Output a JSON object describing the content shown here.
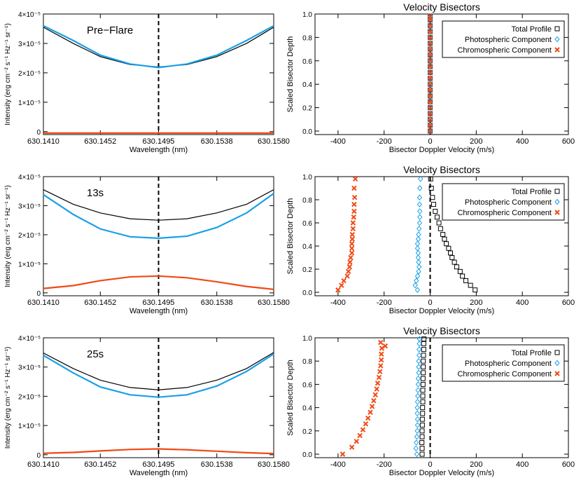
{
  "colors": {
    "total": "#000000",
    "photospheric": "#1aa0e6",
    "chromospheric": "#f04a14",
    "line_center": "#000000"
  },
  "chart_data": [
    {
      "type": "line",
      "xlabel": "Wavelength (nm)",
      "ylabel": "Intensity (erg cm⁻² s⁻¹ Hz⁻¹ sr⁻¹)",
      "xlim": [
        630.141,
        630.158
      ],
      "ylim": [
        -0.1,
        4.0
      ],
      "y_scale_label": "×10⁻⁵",
      "xticks": [
        "630.1410",
        "630.1452",
        "630.1495",
        "630.1538",
        "630.1580"
      ],
      "xtick_values": [
        630.141,
        630.1452,
        630.1495,
        630.1538,
        630.158
      ],
      "yticks": [
        "0",
        "1×10⁻⁵",
        "2×10⁻⁵",
        "3×10⁻⁵",
        "4×10⁻⁵"
      ],
      "ytick_values": [
        0,
        1,
        2,
        3,
        4
      ],
      "annotation": "Pre−Flare",
      "vline_x": 630.1495,
      "series": [
        {
          "key": "total",
          "x": [
            630.141,
            630.1432,
            630.1452,
            630.1474,
            630.1495,
            630.1516,
            630.1538,
            630.156,
            630.158
          ],
          "values": [
            3.55,
            3.0,
            2.55,
            2.28,
            2.2,
            2.28,
            2.55,
            3.0,
            3.55
          ]
        },
        {
          "key": "photospheric",
          "x": [
            630.141,
            630.1432,
            630.1452,
            630.1474,
            630.1495,
            630.1516,
            630.1538,
            630.156,
            630.158
          ],
          "values": [
            3.6,
            3.1,
            2.6,
            2.3,
            2.18,
            2.3,
            2.6,
            3.1,
            3.6
          ]
        },
        {
          "key": "chromospheric",
          "x": [
            630.141,
            630.158
          ],
          "values": [
            -0.05,
            -0.05
          ]
        }
      ]
    },
    {
      "type": "scatter",
      "title": "Velocity Bisectors",
      "xlabel": "Bisector Doppler Velocity (m/s)",
      "ylabel": "Scaled Bisector Depth",
      "xlim": [
        -500,
        600
      ],
      "ylim": [
        -0.03,
        1.0
      ],
      "xticks": [
        -400,
        -200,
        0,
        200,
        400,
        600
      ],
      "yticks": [
        0.0,
        0.2,
        0.4,
        0.6,
        0.8,
        1.0
      ],
      "legend": [
        "Total Profile",
        "Photospheric Component",
        "Chromospheric Component"
      ],
      "legend_position": "top-right",
      "vline_x": 0,
      "series": [
        {
          "name": "Total Profile",
          "key": "total",
          "x": [
            0,
            0,
            0,
            0,
            0,
            0,
            0,
            0,
            0,
            0,
            0,
            0,
            0,
            0,
            0,
            0,
            0,
            0,
            0,
            0,
            0
          ],
          "y": [
            0.0,
            0.05,
            0.1,
            0.15,
            0.2,
            0.25,
            0.3,
            0.35,
            0.4,
            0.45,
            0.5,
            0.55,
            0.6,
            0.65,
            0.7,
            0.75,
            0.8,
            0.85,
            0.9,
            0.95,
            0.98
          ]
        },
        {
          "name": "Photospheric Component",
          "key": "photospheric",
          "x": [
            0,
            0,
            0,
            0,
            0,
            0,
            0,
            0,
            0,
            0,
            0,
            0,
            0,
            0,
            0,
            0,
            0,
            0,
            0,
            0,
            0
          ],
          "y": [
            0.0,
            0.05,
            0.1,
            0.15,
            0.2,
            0.25,
            0.3,
            0.35,
            0.4,
            0.45,
            0.5,
            0.55,
            0.6,
            0.65,
            0.7,
            0.75,
            0.8,
            0.85,
            0.9,
            0.95,
            0.98
          ]
        },
        {
          "name": "Chromospheric Component",
          "key": "chromospheric",
          "x": [
            0,
            0,
            0,
            0,
            0,
            0,
            0,
            0,
            0,
            0,
            0,
            0,
            0,
            0,
            0,
            0,
            0,
            0,
            0,
            0,
            0
          ],
          "y": [
            0.0,
            0.05,
            0.1,
            0.15,
            0.2,
            0.25,
            0.3,
            0.35,
            0.4,
            0.45,
            0.5,
            0.55,
            0.6,
            0.65,
            0.7,
            0.75,
            0.8,
            0.85,
            0.9,
            0.95,
            0.98
          ]
        }
      ]
    },
    {
      "type": "line",
      "xlabel": "Wavelength (nm)",
      "ylabel": "Intensity (erg cm⁻² s⁻¹ Hz⁻¹ sr⁻¹)",
      "xlim": [
        630.141,
        630.158
      ],
      "ylim": [
        -0.1,
        4.0
      ],
      "y_scale_label": "×10⁻⁵",
      "xticks": [
        "630.1410",
        "630.1452",
        "630.1495",
        "630.1538",
        "630.1580"
      ],
      "xtick_values": [
        630.141,
        630.1452,
        630.1495,
        630.1538,
        630.158
      ],
      "yticks": [
        "0",
        "1×10⁻⁵",
        "2×10⁻⁵",
        "3×10⁻⁵",
        "4×10⁻⁵"
      ],
      "ytick_values": [
        0,
        1,
        2,
        3,
        4
      ],
      "annotation": "13s",
      "vline_x": 630.1495,
      "series": [
        {
          "key": "total",
          "x": [
            630.141,
            630.1432,
            630.1452,
            630.1474,
            630.1495,
            630.1516,
            630.1538,
            630.156,
            630.158
          ],
          "values": [
            3.55,
            3.05,
            2.75,
            2.55,
            2.5,
            2.55,
            2.75,
            3.05,
            3.55
          ]
        },
        {
          "key": "photospheric",
          "x": [
            630.141,
            630.1432,
            630.1452,
            630.1474,
            630.1495,
            630.1516,
            630.1538,
            630.156,
            630.158
          ],
          "values": [
            3.38,
            2.7,
            2.2,
            1.93,
            1.88,
            1.95,
            2.25,
            2.75,
            3.42
          ]
        },
        {
          "key": "chromospheric",
          "x": [
            630.141,
            630.1432,
            630.1452,
            630.1474,
            630.1495,
            630.1516,
            630.1538,
            630.156,
            630.158
          ],
          "values": [
            0.15,
            0.25,
            0.42,
            0.55,
            0.58,
            0.52,
            0.38,
            0.22,
            0.12
          ]
        }
      ]
    },
    {
      "type": "scatter",
      "title": "Velocity Bisectors",
      "xlabel": "Bisector Doppler Velocity (m/s)",
      "ylabel": "Scaled Bisector Depth",
      "xlim": [
        -500,
        600
      ],
      "ylim": [
        -0.03,
        1.0
      ],
      "xticks": [
        -400,
        -200,
        0,
        200,
        400,
        600
      ],
      "yticks": [
        0.0,
        0.2,
        0.4,
        0.6,
        0.8,
        1.0
      ],
      "legend": [
        "Total Profile",
        "Photospheric Component",
        "Chromospheric Component"
      ],
      "legend_position": "top-right",
      "vline_x": 0,
      "series": [
        {
          "name": "Total Profile",
          "key": "total",
          "x": [
            195,
            175,
            155,
            140,
            130,
            115,
            105,
            95,
            88,
            80,
            70,
            62,
            55,
            45,
            38,
            30,
            22,
            15,
            10,
            5,
            2
          ],
          "y": [
            0.02,
            0.06,
            0.1,
            0.14,
            0.18,
            0.22,
            0.26,
            0.3,
            0.34,
            0.38,
            0.42,
            0.46,
            0.5,
            0.55,
            0.6,
            0.65,
            0.7,
            0.76,
            0.82,
            0.9,
            0.98
          ]
        },
        {
          "name": "Photospheric Component",
          "key": "photospheric",
          "x": [
            -55,
            -65,
            -60,
            -55,
            -50,
            -48,
            -50,
            -52,
            -52,
            -55,
            -55,
            -52,
            -50,
            -48,
            -46,
            -45,
            -45,
            -46,
            -46,
            -45,
            -42
          ],
          "y": [
            0.02,
            0.06,
            0.1,
            0.14,
            0.18,
            0.22,
            0.26,
            0.3,
            0.34,
            0.38,
            0.42,
            0.46,
            0.5,
            0.55,
            0.6,
            0.65,
            0.7,
            0.76,
            0.82,
            0.9,
            0.98
          ]
        },
        {
          "name": "Chromospheric Component",
          "key": "chromospheric",
          "x": [
            -400,
            -385,
            -375,
            -360,
            -355,
            -350,
            -348,
            -345,
            -340,
            -340,
            -340,
            -338,
            -338,
            -335,
            -335,
            -332,
            -330,
            -330,
            -328,
            -330,
            -325
          ],
          "y": [
            0.02,
            0.06,
            0.1,
            0.14,
            0.18,
            0.22,
            0.26,
            0.3,
            0.34,
            0.38,
            0.42,
            0.46,
            0.5,
            0.55,
            0.6,
            0.65,
            0.7,
            0.76,
            0.82,
            0.9,
            0.98
          ]
        }
      ]
    },
    {
      "type": "line",
      "xlabel": "Wavelength (nm)",
      "ylabel": "Intensity (erg cm⁻² s⁻¹ Hz⁻¹ sr⁻¹)",
      "xlim": [
        630.141,
        630.158
      ],
      "ylim": [
        -0.1,
        4.0
      ],
      "y_scale_label": "×10⁻⁵",
      "xticks": [
        "630.1410",
        "630.1452",
        "630.1495",
        "630.1538",
        "630.1580"
      ],
      "xtick_values": [
        630.141,
        630.1452,
        630.1495,
        630.1538,
        630.158
      ],
      "yticks": [
        "0",
        "1×10⁻⁵",
        "2×10⁻⁵",
        "3×10⁻⁵",
        "4×10⁻⁵"
      ],
      "ytick_values": [
        0,
        1,
        2,
        3,
        4
      ],
      "annotation": "25s",
      "vline_x": 630.1495,
      "series": [
        {
          "key": "total",
          "x": [
            630.141,
            630.1432,
            630.1452,
            630.1474,
            630.1495,
            630.1516,
            630.1538,
            630.156,
            630.158
          ],
          "values": [
            3.48,
            2.95,
            2.55,
            2.3,
            2.22,
            2.3,
            2.55,
            2.95,
            3.5
          ]
        },
        {
          "key": "photospheric",
          "x": [
            630.141,
            630.1432,
            630.1452,
            630.1474,
            630.1495,
            630.1516,
            630.1538,
            630.156,
            630.158
          ],
          "values": [
            3.4,
            2.8,
            2.32,
            2.05,
            1.97,
            2.05,
            2.35,
            2.85,
            3.45
          ]
        },
        {
          "key": "chromospheric",
          "x": [
            630.141,
            630.1432,
            630.1452,
            630.1474,
            630.1495,
            630.1516,
            630.1538,
            630.156,
            630.158
          ],
          "values": [
            0.05,
            0.08,
            0.13,
            0.18,
            0.2,
            0.17,
            0.12,
            0.07,
            0.04
          ]
        }
      ]
    },
    {
      "type": "scatter",
      "title": "Velocity Bisectors",
      "xlabel": "Bisector Doppler Velocity (m/s)",
      "ylabel": "Scaled Bisector Depth",
      "xlim": [
        -500,
        600
      ],
      "ylim": [
        -0.03,
        1.0
      ],
      "xticks": [
        -400,
        -200,
        0,
        200,
        400,
        600
      ],
      "yticks": [
        0.0,
        0.2,
        0.4,
        0.6,
        0.8,
        1.0
      ],
      "legend": [
        "Total Profile",
        "Photospheric Component",
        "Chromospheric Component"
      ],
      "legend_position": "top-right",
      "vline_x": 0,
      "series": [
        {
          "name": "Total Profile",
          "key": "total",
          "x": [
            -35,
            -35,
            -36,
            -35,
            -35,
            -34,
            -34,
            -33,
            -33,
            -32,
            -32,
            -32,
            -31,
            -31,
            -30,
            -30,
            -30,
            -29,
            -28,
            -28,
            -27
          ],
          "y": [
            0.0,
            0.05,
            0.1,
            0.15,
            0.2,
            0.25,
            0.3,
            0.35,
            0.4,
            0.45,
            0.5,
            0.55,
            0.6,
            0.65,
            0.7,
            0.75,
            0.8,
            0.85,
            0.9,
            0.95,
            0.99
          ]
        },
        {
          "name": "Photospheric Component",
          "key": "photospheric",
          "x": [
            -58,
            -62,
            -60,
            -58,
            -56,
            -55,
            -55,
            -56,
            -56,
            -55,
            -54,
            -53,
            -52,
            -52,
            -50,
            -50,
            -50,
            -48,
            -48,
            -47,
            -46
          ],
          "y": [
            0.0,
            0.05,
            0.1,
            0.15,
            0.2,
            0.25,
            0.3,
            0.35,
            0.4,
            0.45,
            0.5,
            0.55,
            0.6,
            0.65,
            0.7,
            0.75,
            0.8,
            0.85,
            0.9,
            0.95,
            0.99
          ]
        },
        {
          "name": "Chromospheric Component",
          "key": "chromospheric",
          "x": [
            -380,
            -340,
            -320,
            -305,
            -292,
            -280,
            -270,
            -260,
            -252,
            -245,
            -238,
            -232,
            -228,
            -222,
            -218,
            -215,
            -212,
            -212,
            -210,
            -215,
            -195
          ],
          "y": [
            0.0,
            0.06,
            0.11,
            0.16,
            0.21,
            0.26,
            0.31,
            0.36,
            0.41,
            0.46,
            0.51,
            0.56,
            0.61,
            0.66,
            0.71,
            0.76,
            0.81,
            0.86,
            0.91,
            0.96,
            0.93
          ]
        }
      ]
    }
  ]
}
